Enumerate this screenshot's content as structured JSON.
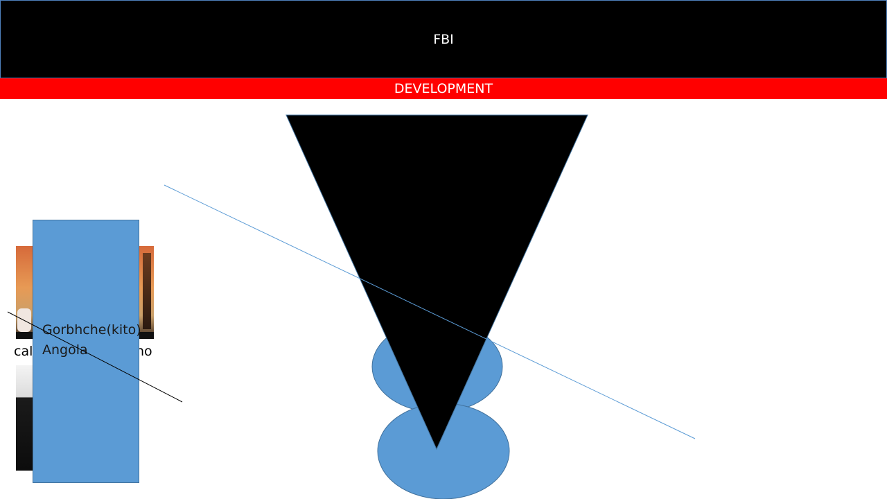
{
  "slide": {
    "title": "FBI",
    "subtitle": "DEVELOPMENT",
    "caption_left": "cal",
    "caption_right": "no",
    "rect_text_line1": "Gorbhche(kito)",
    "rect_text_line2": "Angola"
  },
  "colors": {
    "header": "#000000",
    "subtitle_bar": "#ff0000",
    "shape_fill": "#5b9bd5",
    "triangle": "#000000"
  }
}
